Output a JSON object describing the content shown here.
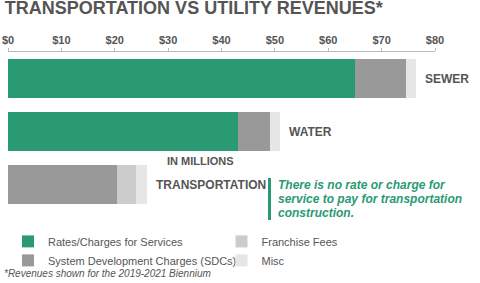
{
  "chart_data": {
    "type": "bar",
    "orientation": "horizontal",
    "stacked": true,
    "title": "TRANSPORTATION VS UTILITY REVENUES*",
    "subtitle": "IN MILLIONS",
    "annotation": "There is no rate or charge for service to pay for transportation construction.",
    "footnote": "*Revenues shown for the 2019-2021 Biennium",
    "categories": [
      "SEWER",
      "WATER",
      "TRANSPORTATION"
    ],
    "series": [
      {
        "name": "Rates/Charges for Services",
        "color": "#2a9a73",
        "values": [
          65,
          43,
          0
        ]
      },
      {
        "name": "System Development Charges (SDCs)",
        "color": "#999999",
        "values": [
          9.5,
          6,
          20.5
        ]
      },
      {
        "name": "Franchise Fees",
        "color": "#cccccc",
        "values": [
          0,
          0,
          3.5
        ]
      },
      {
        "name": "Misc",
        "color": "#e6e6e6",
        "values": [
          2,
          2,
          2
        ]
      }
    ],
    "xlim": [
      0,
      80
    ],
    "xticks": [
      {
        "value": 0,
        "label": "$0"
      },
      {
        "value": 10,
        "label": "$10"
      },
      {
        "value": 20,
        "label": "$20"
      },
      {
        "value": 30,
        "label": "$30"
      },
      {
        "value": 40,
        "label": "$40"
      },
      {
        "value": 50,
        "label": "$50"
      },
      {
        "value": 60,
        "label": "$60"
      },
      {
        "value": 70,
        "label": "$70"
      },
      {
        "value": 80,
        "label": "$80"
      }
    ],
    "grid": false,
    "legend": "bottom"
  }
}
